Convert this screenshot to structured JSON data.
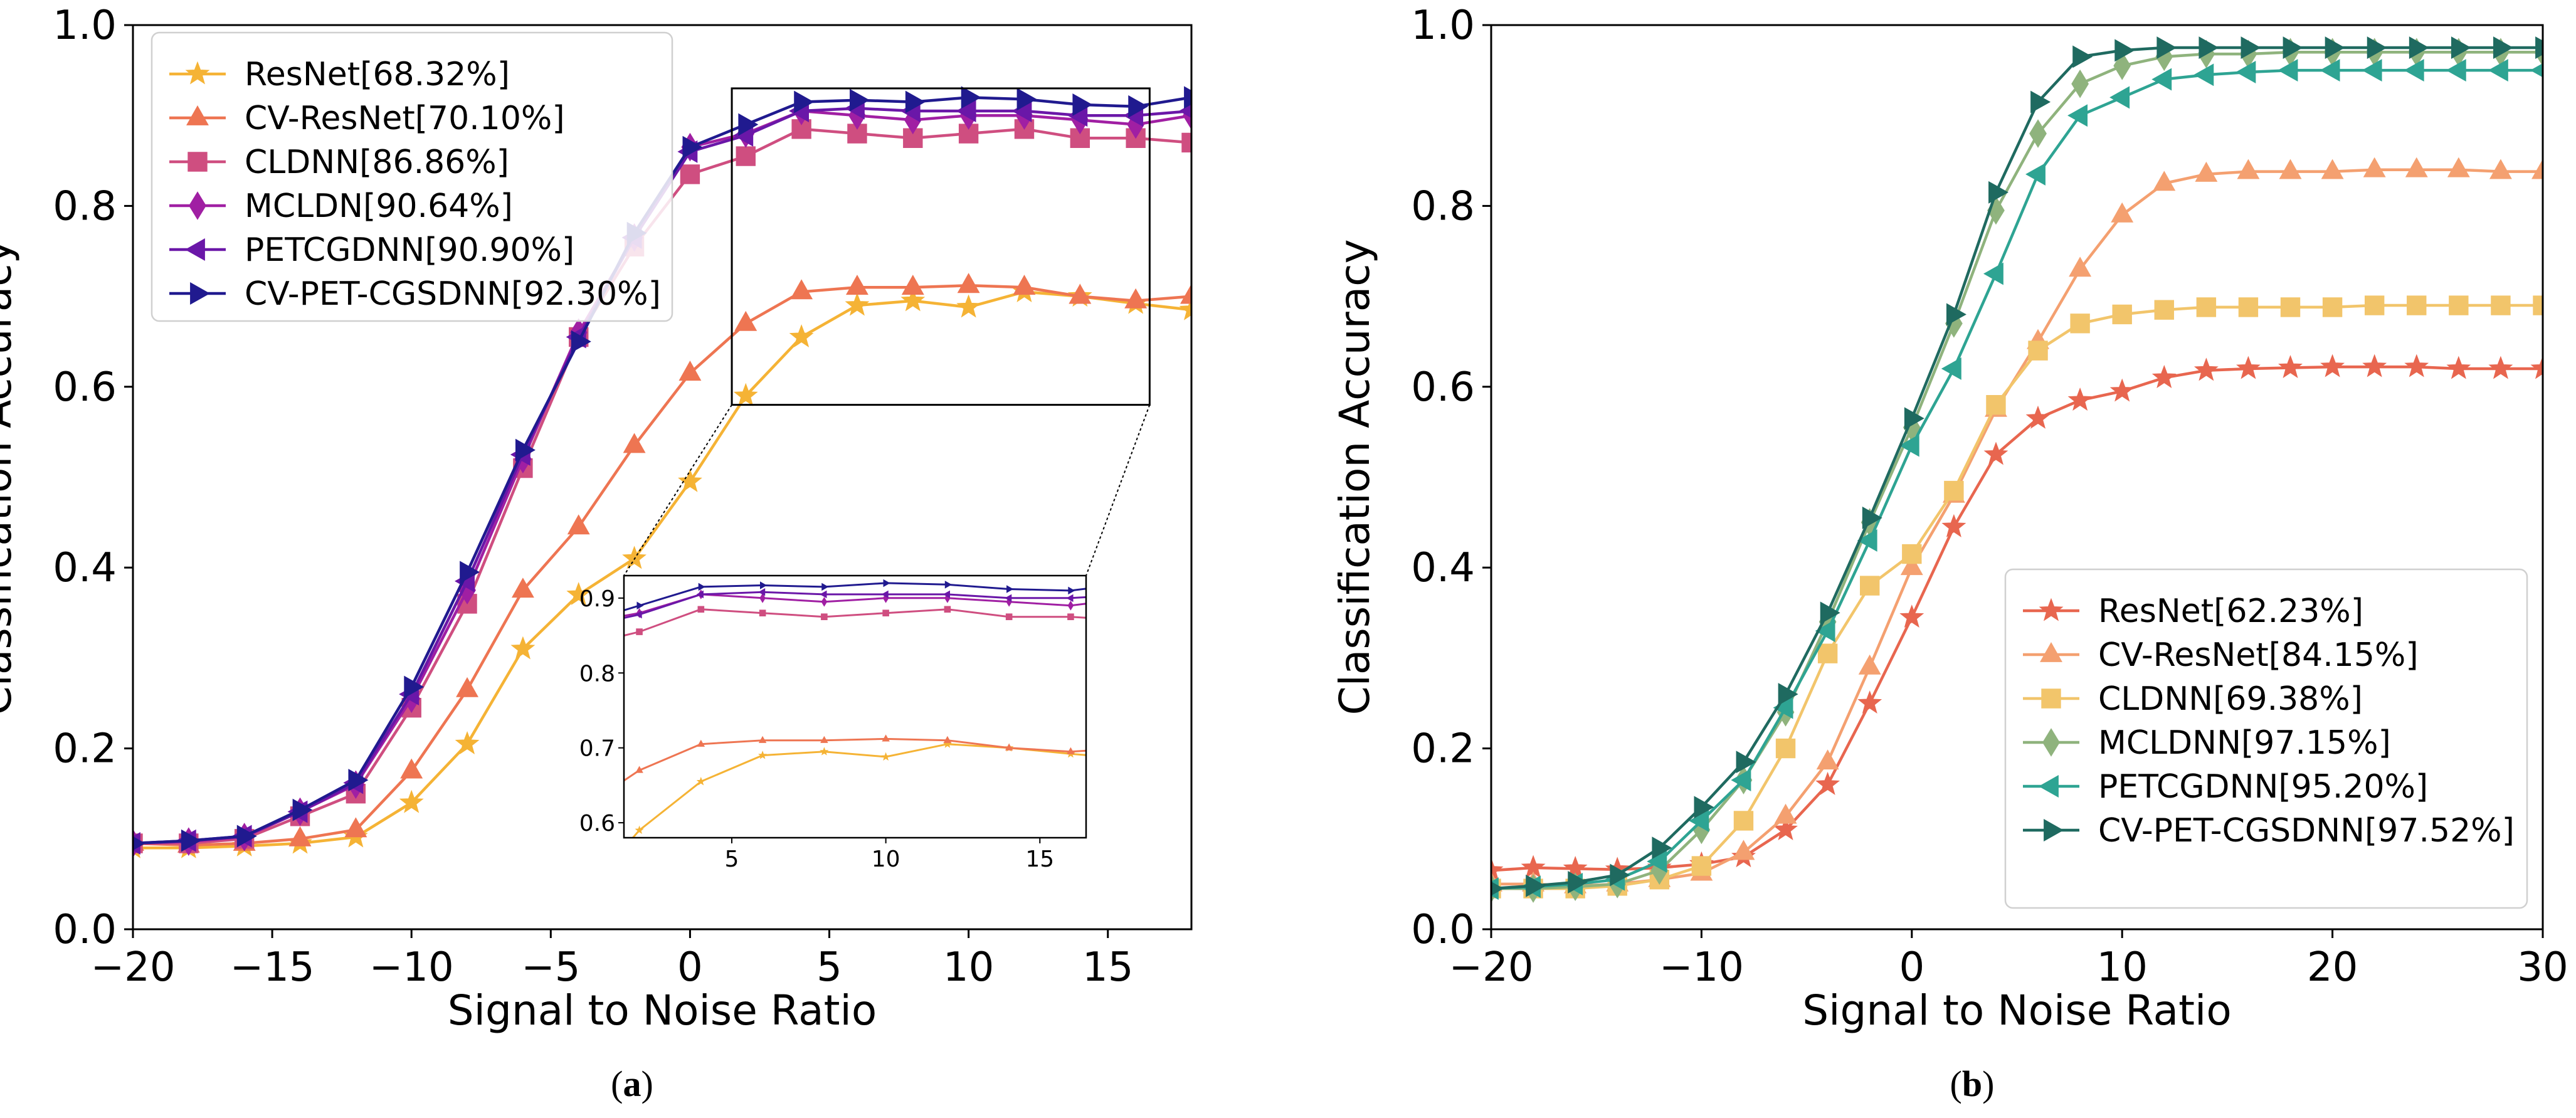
{
  "chart_data": [
    {
      "type": "line",
      "panel_label": "(a)",
      "panel_label_parts": [
        "(",
        "a",
        ")"
      ],
      "title": "",
      "xlabel": "Signal to Noise Ratio",
      "ylabel": "Classification Accuracy",
      "xlim": [
        -20,
        18
      ],
      "ylim": [
        0.0,
        1.0
      ],
      "xticks": [
        -20,
        -15,
        -10,
        -5,
        0,
        5,
        10,
        15
      ],
      "xtick_labels": [
        "−20",
        "−15",
        "−10",
        "−5",
        "0",
        "5",
        "10",
        "15"
      ],
      "yticks": [
        0.0,
        0.2,
        0.4,
        0.6,
        0.8,
        1.0
      ],
      "ytick_labels": [
        "0.0",
        "0.2",
        "0.4",
        "0.6",
        "0.8",
        "1.0"
      ],
      "grid": false,
      "legend_position": "top-left",
      "x": [
        -20,
        -18,
        -16,
        -14,
        -12,
        -10,
        -8,
        -6,
        -4,
        -2,
        0,
        2,
        4,
        6,
        8,
        10,
        12,
        14,
        16,
        18
      ],
      "series": [
        {
          "name": "ResNet[68.32%]",
          "color": "#f5b335",
          "marker": "star",
          "values": [
            0.09,
            0.09,
            0.092,
            0.095,
            0.102,
            0.14,
            0.205,
            0.31,
            0.37,
            0.41,
            0.495,
            0.59,
            0.655,
            0.69,
            0.695,
            0.688,
            0.705,
            0.7,
            0.692,
            0.685
          ]
        },
        {
          "name": "CV-ResNet[70.10%]",
          "color": "#ee7552",
          "marker": "triangle-up",
          "values": [
            0.095,
            0.093,
            0.095,
            0.1,
            0.11,
            0.175,
            0.265,
            0.375,
            0.445,
            0.535,
            0.615,
            0.67,
            0.705,
            0.71,
            0.71,
            0.712,
            0.71,
            0.7,
            0.695,
            0.7
          ]
        },
        {
          "name": "CLDNN[86.86%]",
          "color": "#cf4e80",
          "marker": "square",
          "values": [
            0.095,
            0.095,
            0.1,
            0.125,
            0.15,
            0.245,
            0.36,
            0.51,
            0.655,
            0.755,
            0.835,
            0.855,
            0.885,
            0.88,
            0.875,
            0.88,
            0.885,
            0.875,
            0.875,
            0.87
          ]
        },
        {
          "name": "MCLDN[90.64%]",
          "color": "#a01fa3",
          "marker": "diamond",
          "values": [
            0.095,
            0.097,
            0.102,
            0.13,
            0.16,
            0.255,
            0.375,
            0.52,
            0.66,
            0.765,
            0.865,
            0.88,
            0.905,
            0.9,
            0.895,
            0.9,
            0.9,
            0.895,
            0.89,
            0.9
          ]
        },
        {
          "name": "PETCGDNN[90.90%]",
          "color": "#6a17a8",
          "marker": "triangle-left",
          "values": [
            0.095,
            0.098,
            0.103,
            0.13,
            0.162,
            0.26,
            0.385,
            0.525,
            0.655,
            0.765,
            0.86,
            0.878,
            0.905,
            0.908,
            0.905,
            0.905,
            0.905,
            0.9,
            0.9,
            0.905
          ]
        },
        {
          "name": "CV-PET-CGSDNN[92.30%]",
          "color": "#201a8f",
          "marker": "triangle-right",
          "values": [
            0.095,
            0.098,
            0.103,
            0.132,
            0.165,
            0.268,
            0.395,
            0.53,
            0.65,
            0.77,
            0.865,
            0.89,
            0.915,
            0.917,
            0.915,
            0.92,
            0.918,
            0.912,
            0.91,
            0.92
          ]
        }
      ],
      "inset": {
        "xlim": [
          1.5,
          16.5
        ],
        "ylim": [
          0.58,
          0.93
        ],
        "xticks": [
          5,
          10,
          15
        ],
        "xtick_labels": [
          "5",
          "10",
          "15"
        ],
        "yticks": [
          0.6,
          0.7,
          0.8,
          0.9
        ],
        "ytick_labels": [
          "0.6",
          "0.7",
          "0.8",
          "0.9"
        ],
        "zoom_box_x": [
          1.5,
          16.5
        ],
        "zoom_box_y": [
          0.58,
          0.93
        ]
      }
    },
    {
      "type": "line",
      "panel_label": "(b)",
      "panel_label_parts": [
        "(",
        "b",
        ")"
      ],
      "title": "",
      "xlabel": "Signal to Noise Ratio",
      "ylabel": "Classification Accuracy",
      "xlim": [
        -20,
        30
      ],
      "ylim": [
        0.0,
        1.0
      ],
      "xticks": [
        -20,
        -10,
        0,
        10,
        20,
        30
      ],
      "xtick_labels": [
        "−20",
        "−10",
        "0",
        "10",
        "20",
        "30"
      ],
      "yticks": [
        0.0,
        0.2,
        0.4,
        0.6,
        0.8,
        1.0
      ],
      "ytick_labels": [
        "0.0",
        "0.2",
        "0.4",
        "0.6",
        "0.8",
        "1.0"
      ],
      "grid": false,
      "legend_position": "lower-right",
      "x": [
        -20,
        -18,
        -16,
        -14,
        -12,
        -10,
        -8,
        -6,
        -4,
        -2,
        0,
        2,
        4,
        6,
        8,
        10,
        12,
        14,
        16,
        18,
        20,
        22,
        24,
        26,
        28,
        30
      ],
      "series": [
        {
          "name": "ResNet[62.23%]",
          "color": "#e8664f",
          "marker": "star",
          "values": [
            0.065,
            0.068,
            0.067,
            0.066,
            0.068,
            0.072,
            0.08,
            0.11,
            0.16,
            0.25,
            0.345,
            0.445,
            0.525,
            0.565,
            0.585,
            0.595,
            0.61,
            0.618,
            0.62,
            0.621,
            0.622,
            0.622,
            0.622,
            0.62,
            0.62,
            0.62
          ]
        },
        {
          "name": "CV-ResNet[84.15%]",
          "color": "#f4a070",
          "marker": "triangle-up",
          "values": [
            0.05,
            0.05,
            0.048,
            0.05,
            0.055,
            0.062,
            0.085,
            0.125,
            0.185,
            0.29,
            0.4,
            0.48,
            0.575,
            0.65,
            0.73,
            0.79,
            0.825,
            0.835,
            0.838,
            0.838,
            0.838,
            0.84,
            0.84,
            0.84,
            0.838,
            0.838
          ]
        },
        {
          "name": "CLDNN[69.38%]",
          "color": "#f2c56b",
          "marker": "square",
          "values": [
            0.045,
            0.045,
            0.045,
            0.048,
            0.055,
            0.07,
            0.12,
            0.2,
            0.305,
            0.38,
            0.415,
            0.485,
            0.58,
            0.64,
            0.67,
            0.68,
            0.685,
            0.688,
            0.688,
            0.688,
            0.688,
            0.69,
            0.69,
            0.69,
            0.69,
            0.69
          ]
        },
        {
          "name": "MCLDNN[97.15%]",
          "color": "#8fb37d",
          "marker": "diamond",
          "values": [
            0.045,
            0.045,
            0.047,
            0.05,
            0.065,
            0.11,
            0.165,
            0.24,
            0.34,
            0.45,
            0.555,
            0.67,
            0.795,
            0.88,
            0.935,
            0.955,
            0.965,
            0.968,
            0.968,
            0.97,
            0.97,
            0.97,
            0.97,
            0.97,
            0.97,
            0.97
          ]
        },
        {
          "name": "PETCGDNN[95.20%]",
          "color": "#2ea493",
          "marker": "triangle-left",
          "values": [
            0.045,
            0.047,
            0.05,
            0.055,
            0.075,
            0.12,
            0.165,
            0.245,
            0.33,
            0.43,
            0.535,
            0.62,
            0.725,
            0.835,
            0.9,
            0.92,
            0.94,
            0.945,
            0.948,
            0.95,
            0.95,
            0.95,
            0.95,
            0.95,
            0.95,
            0.95
          ]
        },
        {
          "name": "CV-PET-CGSDNN[97.52%]",
          "color": "#1f6a60",
          "marker": "triangle-right",
          "values": [
            0.045,
            0.048,
            0.052,
            0.06,
            0.09,
            0.135,
            0.185,
            0.26,
            0.35,
            0.455,
            0.565,
            0.68,
            0.815,
            0.915,
            0.965,
            0.972,
            0.975,
            0.975,
            0.975,
            0.975,
            0.975,
            0.975,
            0.975,
            0.975,
            0.975,
            0.975
          ]
        }
      ]
    }
  ]
}
